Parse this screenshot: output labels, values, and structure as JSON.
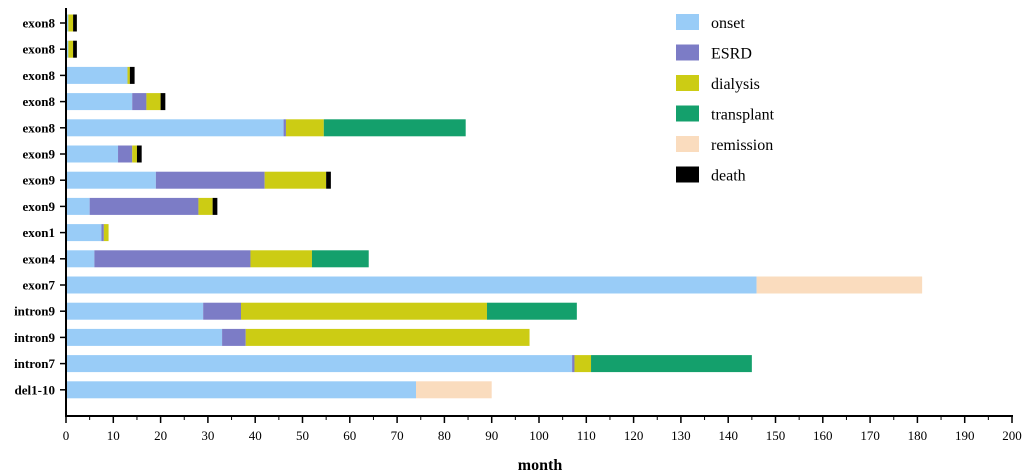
{
  "chart_data": {
    "type": "bar",
    "orientation": "horizontal",
    "stacked": true,
    "title": "",
    "xlabel": "month",
    "ylabel": "",
    "xlim": [
      0,
      200
    ],
    "xticks": [
      0,
      10,
      20,
      30,
      40,
      50,
      60,
      70,
      80,
      90,
      100,
      110,
      120,
      130,
      140,
      150,
      160,
      170,
      180,
      190,
      200
    ],
    "categories": [
      "exon8",
      "exon8",
      "exon8",
      "exon8",
      "exon8",
      "exon9",
      "exon9",
      "exon9",
      "exon1",
      "exon4",
      "exon7",
      "intron9",
      "intron9",
      "intron7",
      "del1-10"
    ],
    "series": [
      {
        "name": "onset",
        "color": "#99ccf7",
        "values": [
          0.5,
          0.5,
          13,
          14,
          46,
          11,
          19,
          5,
          7.5,
          6,
          146,
          29,
          33,
          107,
          74
        ]
      },
      {
        "name": "ESRD",
        "color": "#7c7cc6",
        "values": [
          0,
          0,
          0,
          3,
          0.5,
          3,
          23,
          23,
          0.5,
          33,
          0,
          8,
          5,
          0.5,
          0
        ]
      },
      {
        "name": "dialysis",
        "color": "#cccc14",
        "values": [
          1,
          1,
          0.5,
          3,
          8,
          1,
          13,
          3,
          1,
          13,
          0,
          52,
          60,
          3.5,
          0
        ]
      },
      {
        "name": "transplant",
        "color": "#14a06c",
        "values": [
          0,
          0,
          0,
          0,
          30,
          0,
          0,
          0,
          0,
          12,
          0,
          19,
          0,
          34,
          0
        ]
      },
      {
        "name": "remission",
        "color": "#fadcbe",
        "values": [
          0,
          0,
          0,
          0,
          0,
          0,
          0,
          0,
          0,
          0,
          35,
          0,
          0,
          0,
          16
        ]
      },
      {
        "name": "death",
        "color": "#000000",
        "values": [
          0.8,
          0.8,
          1,
          1,
          0,
          1,
          1,
          1,
          0,
          0,
          0,
          0,
          0,
          0,
          0
        ]
      }
    ],
    "legend": {
      "position": "top-right"
    },
    "grid": false
  }
}
